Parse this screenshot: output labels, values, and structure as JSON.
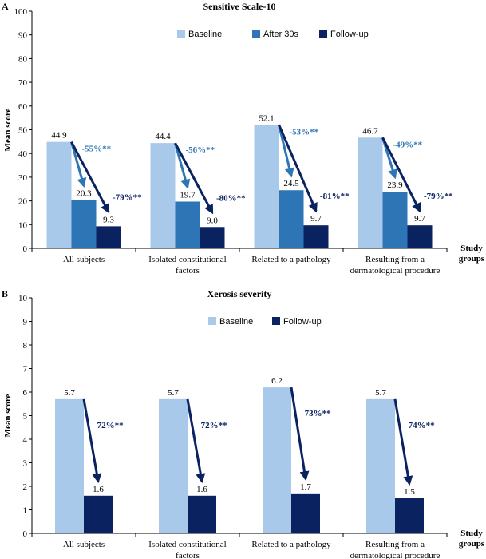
{
  "chart_data": [
    {
      "panel": "A",
      "type": "bar",
      "title": "Sensitive Scale-10",
      "ylabel": "Mean score",
      "xlabel": "Study groups",
      "ylim": [
        0,
        100
      ],
      "yticks": [
        0,
        10,
        20,
        30,
        40,
        50,
        60,
        70,
        80,
        90,
        100
      ],
      "categories": [
        [
          "All subjects"
        ],
        [
          "Isolated constitutional",
          "factors"
        ],
        [
          "Related to a pathology"
        ],
        [
          "Resulting from a",
          "dermatological procedure"
        ]
      ],
      "series": [
        {
          "name": "Baseline",
          "color": "#a9c9ea",
          "values": [
            44.9,
            44.4,
            52.1,
            46.7
          ],
          "labels": [
            "44.9",
            "44.4",
            "52.1",
            "46.7"
          ]
        },
        {
          "name": "After 30s",
          "color": "#2e75b6",
          "values": [
            20.3,
            19.7,
            24.5,
            23.9
          ],
          "labels": [
            "20.3",
            "19.7",
            "24.5",
            "23.9"
          ]
        },
        {
          "name": "Follow-up",
          "color": "#0b2260",
          "values": [
            9.3,
            9.0,
            9.7,
            9.7
          ],
          "labels": [
            "9.3",
            "9.0",
            "9.7",
            "9.7"
          ]
        }
      ],
      "annotations": [
        {
          "from": "Baseline",
          "to": "After 30s",
          "color": "#2e75b6",
          "labels": [
            "-55%**",
            "-56%**",
            "-53%**",
            "-49%**"
          ]
        },
        {
          "from": "Baseline",
          "to": "Follow-up",
          "color": "#0b2260",
          "labels": [
            "-79%**",
            "-80%**",
            "-81%**",
            "-79%**"
          ]
        }
      ],
      "legend": "top"
    },
    {
      "panel": "B",
      "type": "bar",
      "title": "Xerosis severity",
      "ylabel": "Mean score",
      "xlabel": "Study groups",
      "ylim": [
        0,
        10
      ],
      "yticks": [
        0,
        1,
        2,
        3,
        4,
        5,
        6,
        7,
        8,
        9,
        10
      ],
      "categories": [
        [
          "All subjects"
        ],
        [
          "Isolated constitutional",
          "factors"
        ],
        [
          "Related to a pathology"
        ],
        [
          "Resulting from a",
          "dermatological procedure"
        ]
      ],
      "series": [
        {
          "name": "Baseline",
          "color": "#a9c9ea",
          "values": [
            5.7,
            5.7,
            6.2,
            5.7
          ],
          "labels": [
            "5.7",
            "5.7",
            "6.2",
            "5.7"
          ]
        },
        {
          "name": "Follow-up",
          "color": "#0b2260",
          "values": [
            1.6,
            1.6,
            1.7,
            1.5
          ],
          "labels": [
            "1.6",
            "1.6",
            "1.7",
            "1.5"
          ]
        }
      ],
      "annotations": [
        {
          "from": "Baseline",
          "to": "Follow-up",
          "color": "#0b2260",
          "labels": [
            "-72%**",
            "-72%**",
            "-73%**",
            "-74%**"
          ]
        }
      ],
      "legend": "top"
    }
  ]
}
